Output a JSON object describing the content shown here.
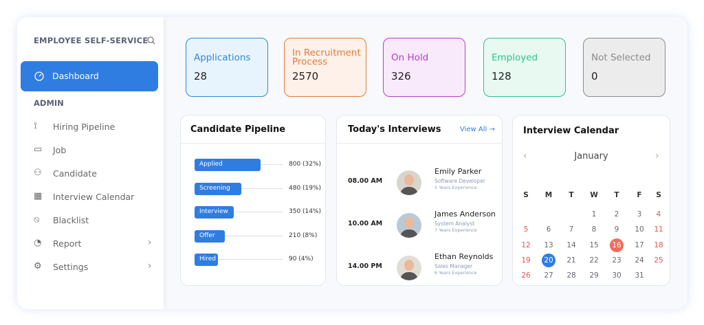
{
  "sidebar": {
    "title": "EMPLOYEE SELF-SERVICE",
    "active": "Dashboard",
    "section": "ADMIN",
    "items": [
      "Hiring Pipeline",
      "Job",
      "Candidate",
      "Interview Calendar",
      "Blacklist",
      "Report",
      "Settings"
    ]
  },
  "stats": [
    {
      "label": "Applications",
      "value": 28,
      "color": "#2f86d6",
      "background": "#e8f4fd"
    },
    {
      "label": "In Recruitment Process",
      "value": 2570,
      "color": "#e47a3a",
      "background": "#fdf1ea"
    },
    {
      "label": "On Hold",
      "value": 326,
      "color": "#b43fc6",
      "background": "#f8e9fb"
    },
    {
      "label": "Employed",
      "value": 128,
      "color": "#2fc18f",
      "background": "#e8f9f2"
    },
    {
      "label": "Not Selected",
      "value": 0,
      "color": "#8a8a8a",
      "background": "#ececec"
    }
  ],
  "pipeline": {
    "title": "Candidate Pipeline",
    "color": "#2f7de1",
    "stages": [
      {
        "name": "Applied",
        "value": 800,
        "label": "800 (32%)"
      },
      {
        "name": "Screening",
        "value": 480,
        "label": "480 (19%)"
      },
      {
        "name": "Interview",
        "value": 350,
        "label": "350 (14%)"
      },
      {
        "name": "Offer",
        "value": 210,
        "label": "210 (8%)"
      },
      {
        "name": "Hired",
        "value": 90,
        "label": "90 (4%)"
      }
    ]
  },
  "interviews": {
    "title": "Today's Interviews",
    "link": "View All →",
    "items": [
      {
        "time": "08.00 AM",
        "name": "Emily Parker",
        "role": "Software Developer",
        "experience": "5 Years Experience"
      },
      {
        "time": "10.00 AM",
        "name": "James Anderson",
        "role": "System Analyst",
        "experience": "7 Years Experience"
      },
      {
        "time": "14.00 PM",
        "name": "Ethan Reynolds",
        "role": "Sales Manager",
        "experience": "6 Years Experience"
      }
    ]
  },
  "calendar": {
    "title": "Interview Calendar",
    "month": "January",
    "weekdays": [
      "S",
      "M",
      "T",
      "W",
      "T",
      "F",
      "S"
    ],
    "weeks": [
      [
        null,
        null,
        null,
        1,
        2,
        3,
        4
      ],
      [
        5,
        6,
        7,
        8,
        9,
        10,
        11
      ],
      [
        12,
        13,
        14,
        15,
        16,
        17,
        18
      ],
      [
        19,
        20,
        21,
        22,
        23,
        24,
        25
      ],
      [
        26,
        27,
        28,
        29,
        30,
        31,
        null
      ]
    ],
    "today": 20,
    "highlight": 16
  }
}
